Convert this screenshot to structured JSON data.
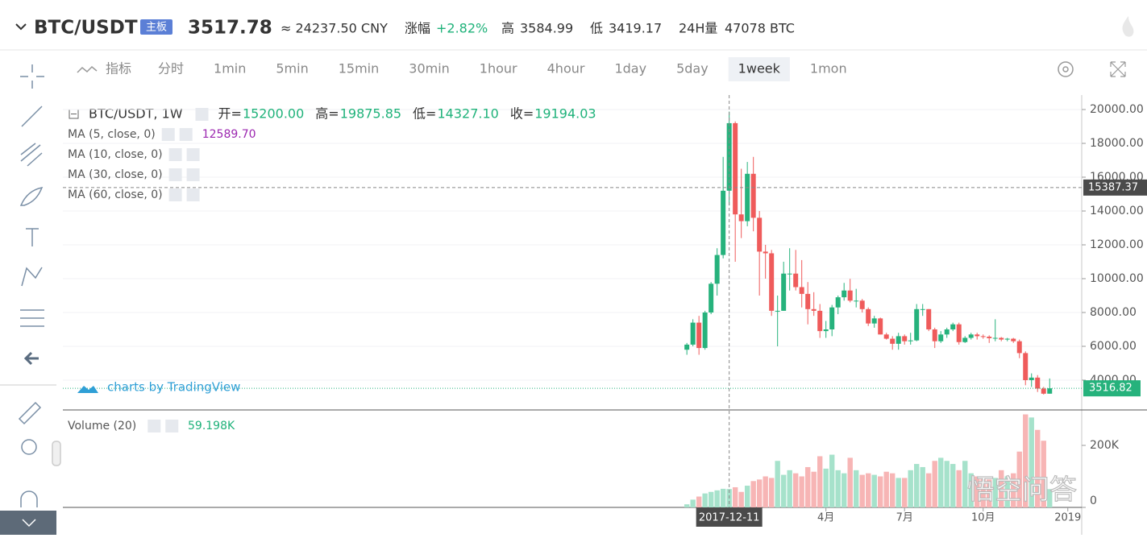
{
  "header": {
    "symbol": "BTC/USDT",
    "badge": "主板",
    "price": "3517.78",
    "cny": "≈ 24237.50 CNY",
    "change_label": "涨幅",
    "change": "+2.82%",
    "high_label": "高",
    "high": "3584.99",
    "low_label": "低",
    "low": "3419.17",
    "volume_label": "24H量",
    "volume": "47078 BTC"
  },
  "toolbar": {
    "indicator": "指标",
    "intervals": [
      "分时",
      "1min",
      "5min",
      "15min",
      "30min",
      "1hour",
      "4hour",
      "1day",
      "5day",
      "1week",
      "1mon"
    ],
    "active": "1week"
  },
  "attribution": "charts by TradingView",
  "watermark": "悟空问答",
  "chart_data": {
    "type": "candlestick",
    "title": "BTC/USDT, 1W",
    "ohlc_legend": [
      {
        "label": "开=",
        "value": "15200.00"
      },
      {
        "label": "高=",
        "value": "19875.85"
      },
      {
        "label": "低=",
        "value": "14327.10"
      },
      {
        "label": "收=",
        "value": "19194.03"
      }
    ],
    "indicators": [
      {
        "name": "MA (5, close, 0)",
        "value": "12589.70"
      },
      {
        "name": "MA (10, close, 0)"
      },
      {
        "name": "MA (30, close, 0)"
      },
      {
        "name": "MA (60, close, 0)"
      }
    ],
    "open": [
      5800,
      6100,
      7400,
      5900,
      8000,
      9700,
      11400,
      15200,
      19194,
      13800,
      13400,
      16200,
      13600,
      11600,
      11500,
      8100,
      8100,
      10300,
      10300,
      9500,
      9100,
      8200,
      8100,
      6900,
      7000,
      8300,
      8900,
      9300,
      8700,
      8700,
      8200,
      7350,
      7650,
      6700,
      6450,
      6150,
      6600,
      6300,
      6350,
      8200,
      8200,
      7000,
      6300,
      6700,
      7000,
      7300,
      6250,
      6500,
      6700,
      6600,
      6570,
      6480,
      6500,
      6400,
      6450,
      6300,
      5600,
      4000,
      4150,
      3500,
      3200
    ],
    "close": [
      6100,
      7400,
      5900,
      8000,
      9700,
      11400,
      15200,
      19194.03,
      13800,
      13400,
      16200,
      13600,
      11600,
      11500,
      8100,
      8100,
      10300,
      10300,
      9500,
      9100,
      8200,
      8100,
      6900,
      7000,
      8300,
      8900,
      9300,
      8700,
      8700,
      8200,
      7350,
      7650,
      6700,
      6450,
      6150,
      6600,
      6300,
      6350,
      8200,
      8200,
      7000,
      6300,
      6700,
      7000,
      7300,
      6250,
      6500,
      6700,
      6600,
      6570,
      6480,
      6500,
      6400,
      6450,
      6300,
      5600,
      4000,
      4150,
      3500,
      3200,
      3516.82
    ],
    "high": [
      6200,
      7600,
      7800,
      8100,
      9800,
      11800,
      17200,
      19875.85,
      19300,
      16500,
      16900,
      17200,
      14000,
      12000,
      11700,
      9000,
      11000,
      11800,
      11700,
      11100,
      9800,
      9200,
      8500,
      7500,
      8450,
      9000,
      9750,
      9990,
      9400,
      8800,
      8300,
      7800,
      7700,
      6800,
      6600,
      6800,
      6700,
      6800,
      8500,
      8500,
      8200,
      7100,
      6900,
      7100,
      7400,
      7400,
      6600,
      6800,
      6800,
      6700,
      6650,
      7600,
      6550,
      6500,
      6500,
      6400,
      5700,
      4400,
      4300,
      3600,
      4100
    ],
    "low": [
      5500,
      6000,
      5500,
      5800,
      7900,
      9000,
      11200,
      14327.1,
      11000,
      12400,
      13100,
      12800,
      9000,
      10000,
      7800,
      6000,
      8100,
      9300,
      9300,
      8300,
      7300,
      7800,
      6500,
      6500,
      6600,
      7900,
      8700,
      8600,
      8300,
      8000,
      7200,
      7100,
      6700,
      6400,
      5800,
      5800,
      6100,
      6100,
      6300,
      7800,
      6900,
      5900,
      6200,
      6500,
      6900,
      6100,
      6200,
      6400,
      6400,
      6450,
      6200,
      6300,
      6300,
      6300,
      6200,
      5300,
      3700,
      3600,
      3300,
      3150,
      3200
    ],
    "volume": [
      10000,
      25000,
      35000,
      45000,
      50000,
      55000,
      60000,
      59198,
      65000,
      50000,
      70000,
      85000,
      90000,
      100000,
      95000,
      150000,
      105000,
      120000,
      110000,
      100000,
      130000,
      115000,
      165000,
      125000,
      170000,
      120000,
      110000,
      160000,
      120000,
      105000,
      110000,
      105000,
      100000,
      115000,
      110000,
      95000,
      95000,
      120000,
      140000,
      130000,
      110000,
      150000,
      160000,
      150000,
      140000,
      120000,
      150000,
      110000,
      100000,
      95000,
      90000,
      95000,
      120000,
      100000,
      110000,
      180000,
      300000,
      290000,
      250000,
      215000,
      59000
    ],
    "xlim": [
      -103.2,
      65.3
    ],
    "xticks": [
      {
        "value": 7,
        "label": "2017-12-11"
      },
      {
        "value": 23,
        "label": "4月"
      },
      {
        "value": 36,
        "label": "7月"
      },
      {
        "value": 49,
        "label": "10月"
      },
      {
        "value": 63,
        "label": "2019"
      }
    ],
    "ylim": [
      2286,
      20857
    ],
    "yticks": [
      {
        "value": 4000,
        "label": "4000.00"
      },
      {
        "value": 6000,
        "label": "6000.00"
      },
      {
        "value": 8000,
        "label": "8000.00"
      },
      {
        "value": 10000,
        "label": "10000.00"
      },
      {
        "value": 12000,
        "label": "12000.00"
      },
      {
        "value": 14000,
        "label": "14000.00"
      },
      {
        "value": 16000,
        "label": "16000.00"
      },
      {
        "value": 18000,
        "label": "18000.00"
      },
      {
        "value": 20000,
        "label": "20000.00"
      }
    ],
    "volume_title": "Volume (20)",
    "volume_value": "59.198K",
    "volume_ylim": [
      0,
      311700
    ],
    "volume_yticks": [
      0,
      {
        "value": 200000,
        "label": "200K"
      }
    ],
    "crosshair": {
      "x": 7,
      "y": 15387.37
    },
    "last_price": 3516.82,
    "grid": true,
    "up_color": "#26b27c",
    "down_color": "#ef5b5b",
    "up_volume_color": "#a6e2cb",
    "down_volume_color": "#f7b5b5"
  }
}
